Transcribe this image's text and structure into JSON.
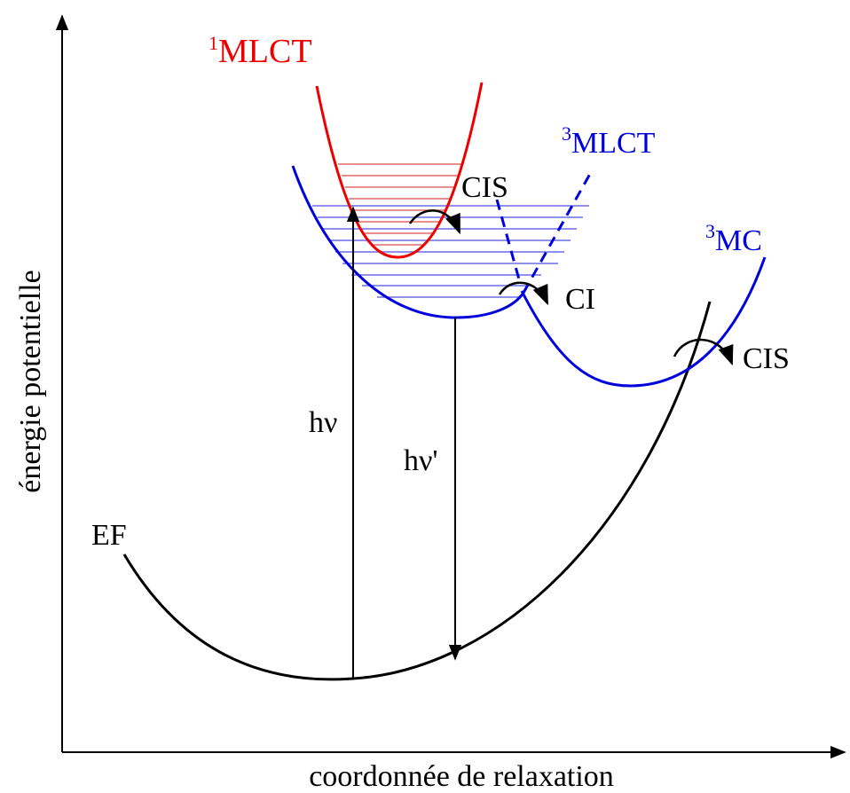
{
  "axes": {
    "y_label": "énergie potentielle",
    "x_label": "coordonnée de relaxation"
  },
  "states": [
    {
      "sup": "1",
      "text": "MLCT"
    },
    {
      "sup": "3",
      "text": "MLCT"
    },
    {
      "sup": "3",
      "text": "MC"
    },
    {
      "text": "EF"
    }
  ],
  "transitions": [
    "CIS",
    "CI",
    "CIS",
    "hν",
    "hν'"
  ]
}
